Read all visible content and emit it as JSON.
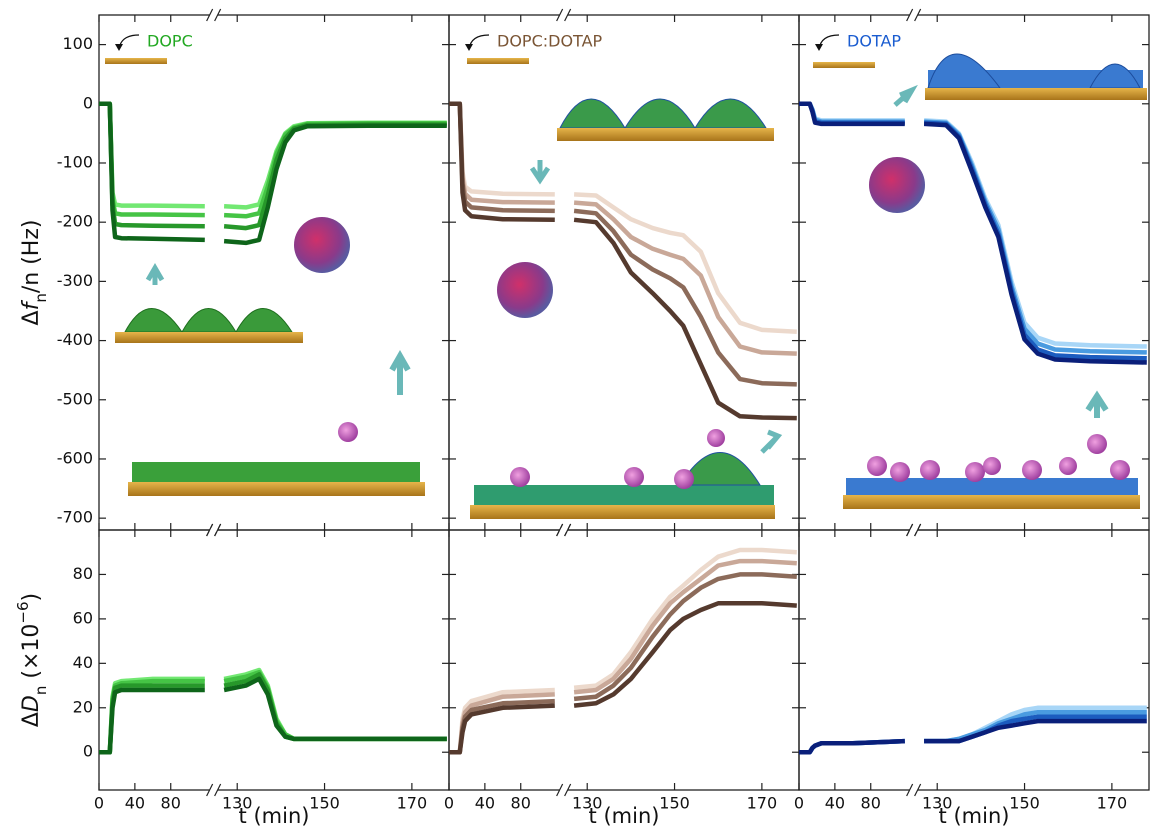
{
  "chart_data": [
    {
      "type": "line",
      "label": "DOPC",
      "label_color": "#22a822",
      "ylabel": [
        "Δ",
        "f",
        "n",
        "/n (Hz)"
      ],
      "x": [
        0,
        12,
        15,
        18,
        25,
        60,
        118,
        122,
        127,
        132,
        135,
        137,
        139,
        141,
        143,
        146,
        160,
        178
      ],
      "series": [
        {
          "color": "#72e872",
          "values": [
            0,
            0,
            -150,
            -170,
            -172,
            -172,
            -173,
            null,
            -173,
            -175,
            -170,
            -130,
            -80,
            -50,
            -38,
            -33,
            -32,
            -32
          ]
        },
        {
          "color": "#45c445",
          "values": [
            0,
            0,
            -160,
            -185,
            -187,
            -187,
            -188,
            null,
            -188,
            -190,
            -185,
            -140,
            -85,
            -52,
            -40,
            -34,
            -33,
            -33
          ]
        },
        {
          "color": "#27982a",
          "values": [
            0,
            0,
            -170,
            -203,
            -205,
            -206,
            -207,
            null,
            -207,
            -210,
            -205,
            -155,
            -95,
            -58,
            -42,
            -36,
            -35,
            -35
          ]
        },
        {
          "color": "#0e651a",
          "values": [
            0,
            0,
            -180,
            -225,
            -227,
            -228,
            -230,
            null,
            -232,
            -235,
            -230,
            -175,
            -110,
            -65,
            -45,
            -38,
            -37,
            -37
          ]
        }
      ],
      "ylim": [
        -720,
        150
      ],
      "yticks": [
        100,
        0,
        -100,
        -200,
        -300,
        -400,
        -500,
        -600,
        -700
      ],
      "show_ytick_labels": true,
      "x_segments": [
        {
          "xlim": [
            0,
            121
          ],
          "xticks": [
            0,
            40,
            80
          ]
        },
        {
          "xlim": [
            126,
            178.5
          ],
          "xticks": [
            130,
            150,
            170
          ]
        }
      ],
      "show_xtick_labels": false
    },
    {
      "type": "line",
      "label": "DOPC:DOTAP",
      "label_color": "#7a5535",
      "x": [
        0,
        12,
        15,
        18,
        25,
        60,
        118,
        122,
        127,
        132,
        136,
        140,
        145,
        149,
        152,
        156,
        160,
        165,
        170,
        178
      ],
      "series": [
        {
          "color": "#ecd9cc",
          "values": [
            0,
            0,
            -115,
            -140,
            -148,
            -152,
            -153,
            null,
            -153,
            -155,
            -175,
            -195,
            -210,
            -218,
            -222,
            -250,
            -320,
            -370,
            -382,
            -385
          ]
        },
        {
          "color": "#c9a898",
          "values": [
            0,
            0,
            -125,
            -152,
            -162,
            -166,
            -167,
            null,
            -167,
            -170,
            -195,
            -225,
            -245,
            -255,
            -262,
            -290,
            -360,
            -410,
            -420,
            -422
          ]
        },
        {
          "color": "#8c6b5a",
          "values": [
            0,
            0,
            -135,
            -165,
            -175,
            -180,
            -181,
            null,
            -181,
            -185,
            -215,
            -255,
            -280,
            -295,
            -310,
            -360,
            -420,
            -465,
            -472,
            -474
          ]
        },
        {
          "color": "#553a2e",
          "values": [
            0,
            0,
            -150,
            -180,
            -190,
            -195,
            -196,
            null,
            -196,
            -200,
            -235,
            -285,
            -320,
            -350,
            -375,
            -440,
            -505,
            -528,
            -530,
            -531
          ]
        }
      ],
      "ylim": [
        -720,
        150
      ],
      "yticks": [
        100,
        0,
        -100,
        -200,
        -300,
        -400,
        -500,
        -600,
        -700
      ],
      "show_ytick_labels": false,
      "x_segments": [
        {
          "xlim": [
            0,
            121
          ],
          "xticks": [
            0,
            40,
            80
          ]
        },
        {
          "xlim": [
            126,
            178.5
          ],
          "xticks": [
            130,
            150,
            170
          ]
        }
      ],
      "show_xtick_labels": false
    },
    {
      "type": "line",
      "label": "DOTAP",
      "label_color": "#1a5cd0",
      "x": [
        0,
        12,
        15,
        18,
        25,
        60,
        118,
        122,
        127,
        132,
        135,
        138,
        141,
        144,
        147,
        150,
        153,
        157,
        165,
        178
      ],
      "series": [
        {
          "color": "#a8d6f7",
          "values": [
            0,
            0,
            -10,
            -25,
            -28,
            -28,
            -28,
            null,
            -28,
            -30,
            -50,
            -100,
            -160,
            -205,
            -300,
            -370,
            -395,
            -405,
            -408,
            -410
          ]
        },
        {
          "color": "#4a9be0",
          "values": [
            0,
            0,
            -10,
            -27,
            -30,
            -30,
            -30,
            null,
            -30,
            -32,
            -52,
            -105,
            -165,
            -212,
            -308,
            -380,
            -405,
            -415,
            -418,
            -420
          ]
        },
        {
          "color": "#1c5cbf",
          "values": [
            0,
            0,
            -12,
            -30,
            -32,
            -32,
            -32,
            null,
            -32,
            -34,
            -55,
            -110,
            -170,
            -220,
            -315,
            -390,
            -415,
            -425,
            -428,
            -430
          ]
        },
        {
          "color": "#0a1f7a",
          "values": [
            0,
            0,
            -14,
            -32,
            -34,
            -34,
            -34,
            null,
            -34,
            -36,
            -58,
            -115,
            -175,
            -225,
            -322,
            -398,
            -422,
            -432,
            -435,
            -437
          ]
        }
      ],
      "ylim": [
        -720,
        150
      ],
      "yticks": [
        100,
        0,
        -100,
        -200,
        -300,
        -400,
        -500,
        -600,
        -700
      ],
      "show_ytick_labels": false,
      "x_segments": [
        {
          "xlim": [
            0,
            121
          ],
          "xticks": [
            0,
            40,
            80
          ]
        },
        {
          "xlim": [
            126,
            178.5
          ],
          "xticks": [
            130,
            150,
            170
          ]
        }
      ],
      "show_xtick_labels": false
    },
    {
      "type": "line",
      "xlabel": "t (min)",
      "ylabel": [
        "Δ",
        "D",
        "n",
        " (×10",
        "−6",
        ")"
      ],
      "x": [
        0,
        12,
        15,
        18,
        25,
        60,
        118,
        122,
        127,
        132,
        135,
        137,
        139,
        141,
        143,
        146,
        160,
        178
      ],
      "series": [
        {
          "color": "#72e872",
          "values": [
            0,
            0,
            25,
            31,
            32,
            33,
            33,
            null,
            33,
            35,
            37,
            30,
            15,
            8,
            6,
            6,
            6,
            6
          ]
        },
        {
          "color": "#45c445",
          "values": [
            0,
            0,
            24,
            30,
            31,
            32,
            32,
            null,
            32,
            34,
            36,
            29,
            14,
            8,
            6,
            6,
            6,
            6
          ]
        },
        {
          "color": "#27982a",
          "values": [
            0,
            0,
            22,
            29,
            30,
            30,
            30,
            null,
            30,
            32,
            35,
            28,
            13,
            7,
            6,
            6,
            6,
            6
          ]
        },
        {
          "color": "#0e651a",
          "values": [
            0,
            0,
            20,
            27,
            28,
            28,
            28,
            null,
            28,
            30,
            33,
            26,
            12,
            7,
            6,
            6,
            6,
            6
          ]
        }
      ],
      "ylim": [
        -17,
        100
      ],
      "yticks": [
        0,
        20,
        40,
        60,
        80
      ],
      "show_ytick_labels": true,
      "x_segments": [
        {
          "xlim": [
            0,
            121
          ],
          "xticks": [
            0,
            40,
            80
          ]
        },
        {
          "xlim": [
            126,
            178.5
          ],
          "xticks": [
            130,
            150,
            170
          ]
        }
      ],
      "show_xtick_labels": true
    },
    {
      "type": "line",
      "xlabel": "t (min)",
      "x": [
        0,
        12,
        15,
        18,
        25,
        60,
        118,
        122,
        127,
        132,
        136,
        140,
        145,
        149,
        152,
        156,
        160,
        165,
        170,
        178
      ],
      "series": [
        {
          "color": "#ecd9cc",
          "values": [
            0,
            0,
            15,
            20,
            23,
            27,
            28,
            null,
            29,
            30,
            35,
            45,
            60,
            70,
            75,
            82,
            88,
            91,
            91,
            90
          ]
        },
        {
          "color": "#c9a898",
          "values": [
            0,
            0,
            13,
            18,
            21,
            25,
            26,
            null,
            27,
            28,
            33,
            42,
            57,
            67,
            72,
            78,
            84,
            86,
            86,
            85
          ]
        },
        {
          "color": "#8c6b5a",
          "values": [
            0,
            0,
            11,
            16,
            19,
            22,
            23,
            null,
            24,
            25,
            30,
            38,
            52,
            62,
            68,
            74,
            78,
            80,
            80,
            79
          ]
        },
        {
          "color": "#553a2e",
          "values": [
            0,
            0,
            9,
            14,
            17,
            20,
            21,
            null,
            21,
            22,
            26,
            33,
            45,
            55,
            60,
            64,
            67,
            67,
            67,
            66
          ]
        }
      ],
      "ylim": [
        -17,
        100
      ],
      "yticks": [
        0,
        20,
        40,
        60,
        80
      ],
      "show_ytick_labels": false,
      "x_segments": [
        {
          "xlim": [
            0,
            121
          ],
          "xticks": [
            0,
            40,
            80
          ]
        },
        {
          "xlim": [
            126,
            178.5
          ],
          "xticks": [
            130,
            150,
            170
          ]
        }
      ],
      "show_xtick_labels": true
    },
    {
      "type": "line",
      "xlabel": "t (min)",
      "x": [
        0,
        12,
        15,
        18,
        25,
        60,
        118,
        122,
        127,
        132,
        135,
        138,
        141,
        144,
        147,
        150,
        153,
        157,
        165,
        178
      ],
      "series": [
        {
          "color": "#a8d6f7",
          "values": [
            0,
            0,
            2,
            3,
            4,
            4,
            5,
            null,
            5,
            5,
            6,
            8,
            11,
            14,
            17,
            19,
            20,
            20,
            20,
            20
          ]
        },
        {
          "color": "#4a9be0",
          "values": [
            0,
            0,
            2,
            3,
            4,
            4,
            5,
            null,
            5,
            5,
            6,
            8,
            10,
            13,
            15,
            17,
            18,
            18,
            18,
            18
          ]
        },
        {
          "color": "#1c5cbf",
          "values": [
            0,
            0,
            2,
            3,
            4,
            4,
            5,
            null,
            5,
            5,
            5,
            7,
            9,
            12,
            14,
            15,
            16,
            16,
            16,
            16
          ]
        },
        {
          "color": "#0a1f7a",
          "values": [
            0,
            0,
            2,
            3,
            4,
            4,
            5,
            null,
            5,
            5,
            5,
            7,
            9,
            11,
            12,
            13,
            14,
            14,
            14,
            14
          ]
        }
      ],
      "ylim": [
        -17,
        100
      ],
      "yticks": [
        0,
        20,
        40,
        60,
        80
      ],
      "show_ytick_labels": false,
      "x_segments": [
        {
          "xlim": [
            0,
            121
          ],
          "xticks": [
            0,
            40,
            80
          ]
        },
        {
          "xlim": [
            126,
            178.5
          ],
          "xticks": [
            130,
            150,
            170
          ]
        }
      ],
      "show_xtick_labels": true
    }
  ]
}
